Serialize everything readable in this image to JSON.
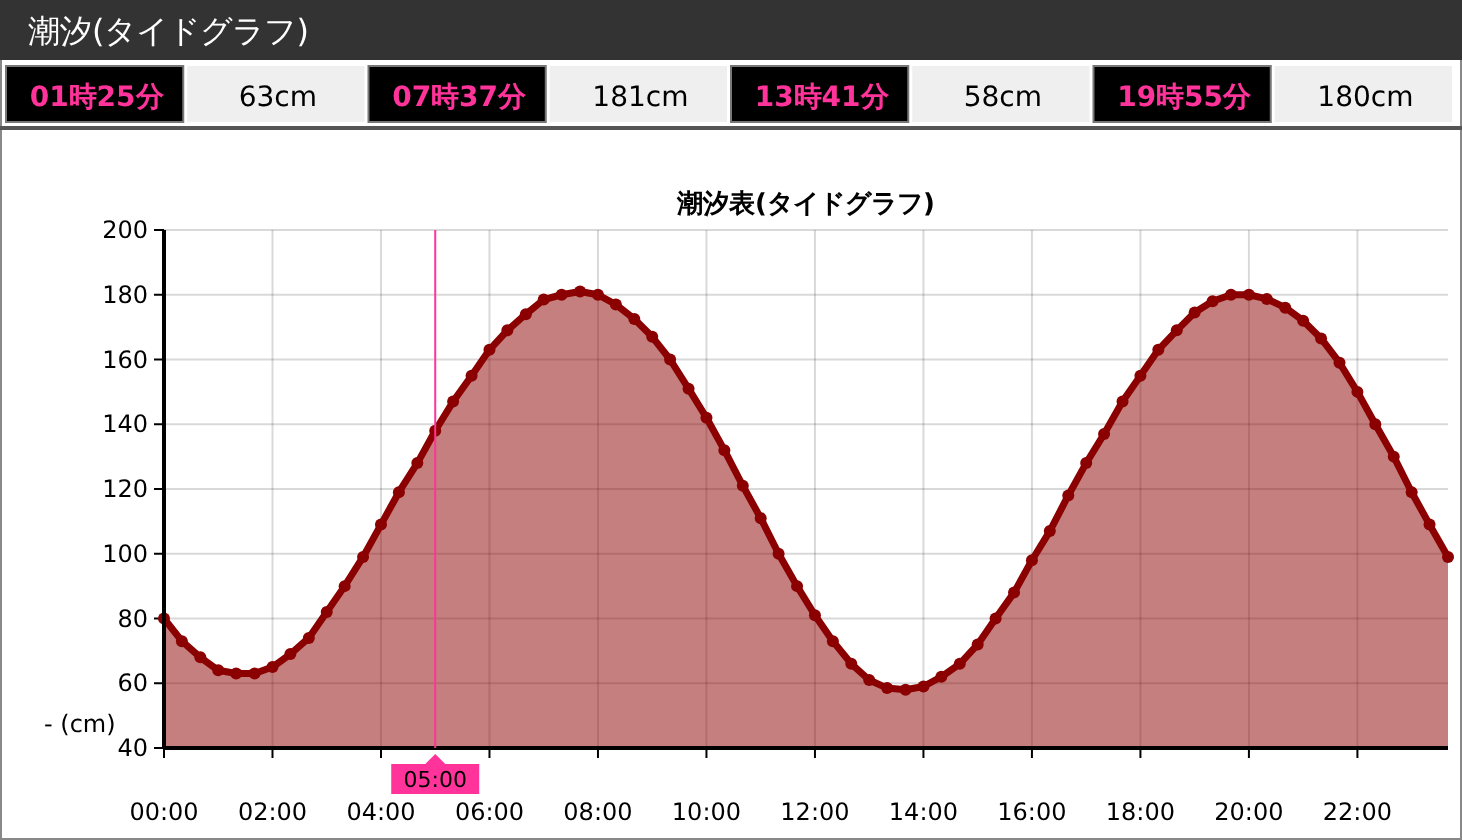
{
  "chart_data": {
    "type": "area",
    "title": "潮汐表(タイドグラフ)",
    "ylabel": "- (cm)",
    "annotations": [
      "潮汐(タイドグラフ)",
      "01時25分",
      "63cm",
      "07時37分",
      "181cm",
      "13時41分",
      "58cm",
      "19時55分",
      "180cm"
    ],
    "x": [
      0,
      0.33,
      0.67,
      1,
      1.33,
      1.67,
      2,
      2.33,
      2.67,
      3,
      3.33,
      3.67,
      4,
      4.33,
      4.67,
      5,
      5.33,
      5.67,
      6,
      6.33,
      6.67,
      7,
      7.33,
      7.67,
      8,
      8.33,
      8.67,
      9,
      9.33,
      9.67,
      10,
      10.33,
      10.67,
      11,
      11.33,
      11.67,
      12,
      12.33,
      12.67,
      13,
      13.33,
      13.67,
      14,
      14.33,
      14.67,
      15,
      15.33,
      15.67,
      16,
      16.33,
      16.67,
      17,
      17.33,
      17.67,
      18,
      18.33,
      18.67,
      19,
      19.33,
      19.67,
      20,
      20.33,
      20.67,
      21,
      21.33,
      21.67,
      22,
      22.33,
      22.67,
      23,
      23.33,
      23.67
    ],
    "series": [
      {
        "color": "#8b0000",
        "values": [
          80,
          73,
          68,
          64,
          63,
          63,
          65,
          69,
          74,
          82,
          90,
          99,
          109,
          119,
          128,
          138,
          147,
          155,
          163,
          169,
          174,
          178.5,
          180,
          181,
          180,
          177,
          172.5,
          167,
          160,
          151,
          142,
          132,
          121,
          111,
          100,
          90,
          81,
          73,
          66,
          61,
          58.5,
          58,
          59,
          62,
          66,
          72,
          80,
          88,
          98,
          107,
          118,
          128,
          137,
          147,
          155,
          163,
          169,
          174.5,
          178,
          180,
          180,
          178.7,
          176,
          172,
          166.5,
          159,
          150,
          140,
          130,
          119,
          109,
          99
        ]
      }
    ],
    "xlim": [
      0,
      23.67
    ],
    "xticks": [
      {
        "value": 0,
        "label": "00:00"
      },
      {
        "value": 2,
        "label": "02:00"
      },
      {
        "value": 4,
        "label": "04:00"
      },
      {
        "value": 6,
        "label": "06:00"
      },
      {
        "value": 8,
        "label": "08:00"
      },
      {
        "value": 10,
        "label": "10:00"
      },
      {
        "value": 12,
        "label": "12:00"
      },
      {
        "value": 14,
        "label": "14:00"
      },
      {
        "value": 16,
        "label": "16:00"
      },
      {
        "value": 18,
        "label": "18:00"
      },
      {
        "value": 20,
        "label": "20:00"
      },
      {
        "value": 22,
        "label": "22:00"
      }
    ],
    "ylim": [
      40,
      200
    ],
    "yticks": [
      40,
      60,
      80,
      100,
      120,
      140,
      160,
      180,
      200
    ],
    "ref_lines": [
      {
        "axis": "x",
        "value": 5,
        "label": "05:00",
        "color": "#ff3399"
      }
    ],
    "grid": true,
    "marker": "circle"
  }
}
